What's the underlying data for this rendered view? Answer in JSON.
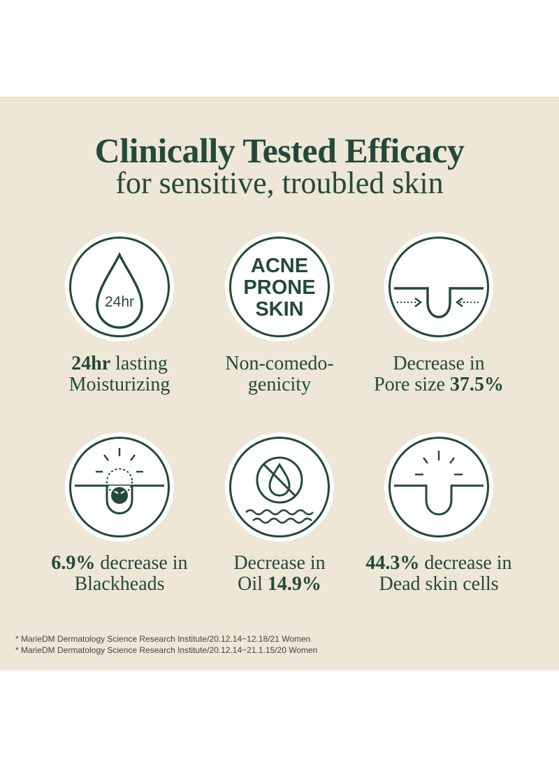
{
  "header": {
    "title": "Clinically Tested Efficacy",
    "subtitle": "for sensitive, troubled skin"
  },
  "items": [
    {
      "icon": "water-drop-icon",
      "drop_label": "24hr",
      "bold1": "24hr",
      "text1": " lasting",
      "line2": "Moisturizing"
    },
    {
      "icon": "acne-prone-skin-icon",
      "badge_lines": [
        "ACNE",
        "PRONE",
        "SKIN"
      ],
      "line1": "Non-comedo-",
      "line2": "genicity"
    },
    {
      "icon": "pore-shrink-icon",
      "line1": "Decrease in",
      "text2": "Pore size ",
      "bold2": "37.5%"
    },
    {
      "icon": "blackhead-icon",
      "bold1": "6.9%",
      "text1": " decrease in",
      "line2": "Blackheads"
    },
    {
      "icon": "no-oil-icon",
      "line1": "Decrease in",
      "text2": "Oil ",
      "bold2": "14.9%"
    },
    {
      "icon": "dead-skin-icon",
      "bold1": "44.3%",
      "text1": " decrease in",
      "line2": "Dead skin cells"
    }
  ],
  "footnotes": [
    "* MarieDM Dermatology Science Research Institute/20.12.14~12.18/21 Women",
    "* MarieDM Dermatology Science Research Institute/20.12.14~21.1.15/20 Women"
  ],
  "colors": {
    "accent": "#23493a",
    "background": "#eee6d6",
    "badge": "#ffffff"
  }
}
